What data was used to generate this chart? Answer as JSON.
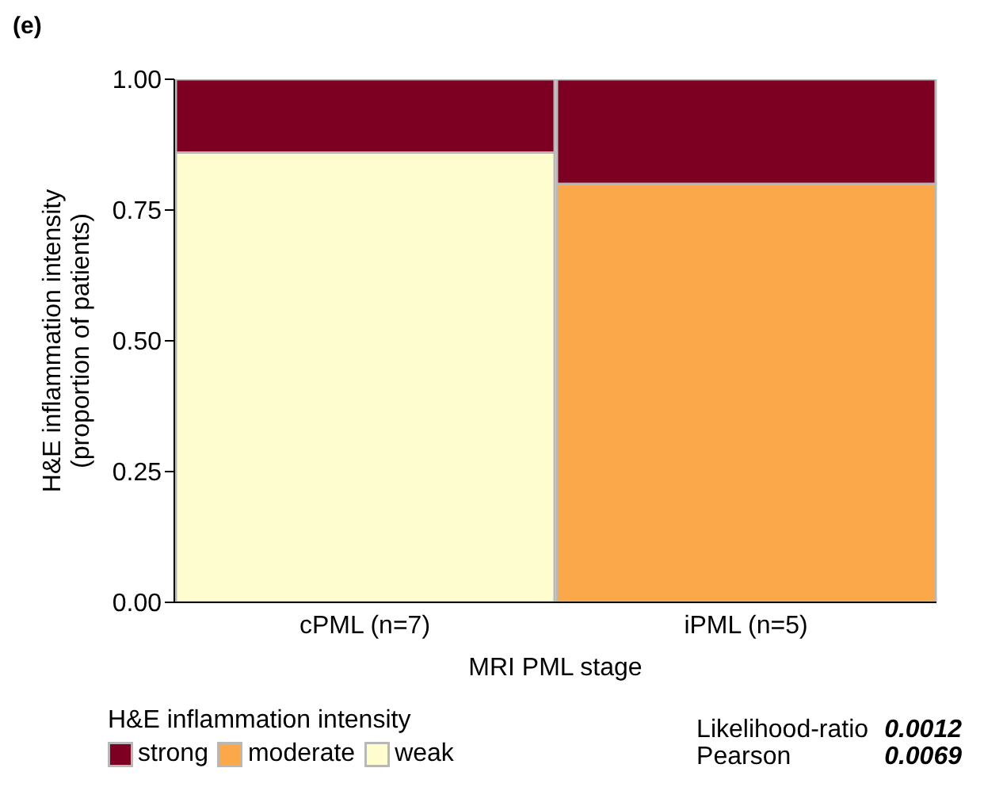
{
  "chart_data": {
    "type": "bar",
    "stacked": true,
    "xlabel": "MRI PML stage",
    "ylabel": "H&E inflammation intensity\n(proportion of patients)",
    "legend_title": "H&E inflammation intensity",
    "legend": "bottom left",
    "categories": [
      "cPML (n=7)",
      "iPML (n=5)"
    ],
    "series": [
      {
        "name": "weak",
        "color": "#fefdd0",
        "values": [
          0.86,
          0
        ]
      },
      {
        "name": "moderate",
        "color": "#fba84a",
        "values": [
          0,
          0.8
        ]
      },
      {
        "name": "strong",
        "color": "#7d0023",
        "values": [
          0.14,
          0.2
        ]
      }
    ],
    "ylim": [
      0,
      1
    ],
    "yticks": [
      {
        "value": 0,
        "label": "0.00"
      },
      {
        "value": 0.25,
        "label": "0.25"
      },
      {
        "value": 0.5,
        "label": "0.50"
      },
      {
        "value": 0.75,
        "label": "0.75"
      },
      {
        "value": 1,
        "label": "1.00"
      }
    ],
    "annotations": [
      "(e)",
      "Likelihood-ratio",
      "0.0012",
      "Pearson",
      "0.0069"
    ]
  }
}
